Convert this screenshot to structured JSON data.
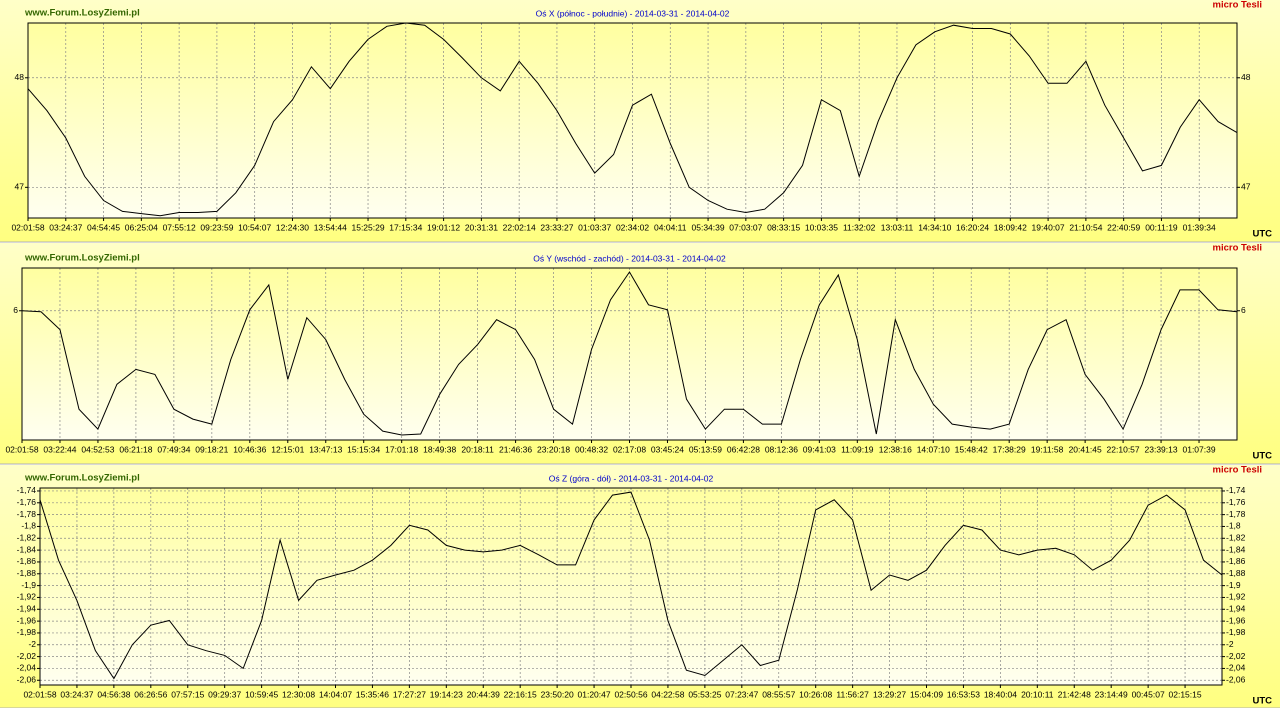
{
  "chart_data": [
    {
      "type": "line",
      "title": "Oś X (północ - południe) - 2014-03-31 - 2014-04-02",
      "watermark": "www.Forum.LosyZiemi.pl",
      "unit": "micro Tesli",
      "x_label": "UTC",
      "categories": [
        "02:01:58",
        null,
        "03:24:37",
        null,
        "04:54:45",
        null,
        "06:25:04",
        null,
        "07:55:12",
        null,
        "09:23:59",
        null,
        "10:54:07",
        null,
        "12:24:30",
        null,
        "13:54:44",
        null,
        "15:25:29",
        null,
        "17:15:34",
        null,
        "19:01:12",
        null,
        "20:31:31",
        null,
        "22:02:14",
        null,
        "23:33:27",
        null,
        "01:03:37",
        null,
        "02:34:02",
        null,
        "04:04:11",
        null,
        "05:34:39",
        null,
        "07:03:07",
        null,
        "08:33:15",
        null,
        "10:03:35",
        null,
        "11:32:02",
        null,
        "13:03:11",
        null,
        "14:34:10",
        null,
        "16:20:24",
        null,
        "18:09:42",
        null,
        "19:40:07",
        null,
        "21:10:54",
        null,
        "22:40:59",
        null,
        "00:11:19",
        null,
        "01:39:34",
        null,
        null
      ],
      "values": [
        47.9,
        47.7,
        47.45,
        47.1,
        46.88,
        46.78,
        46.76,
        46.74,
        46.77,
        46.77,
        46.78,
        46.95,
        47.2,
        47.6,
        47.8,
        48.1,
        47.9,
        48.15,
        48.35,
        48.47,
        48.5,
        48.48,
        48.35,
        48.18,
        48.0,
        47.88,
        48.15,
        47.95,
        47.7,
        47.4,
        47.13,
        47.3,
        47.75,
        47.85,
        47.4,
        47.0,
        46.88,
        46.8,
        46.77,
        46.8,
        46.95,
        47.2,
        47.8,
        47.7,
        47.1,
        47.6,
        48.0,
        48.3,
        48.42,
        48.48,
        48.45,
        48.45,
        48.4,
        48.2,
        47.95,
        47.95,
        48.15,
        47.75,
        47.45,
        47.15,
        47.2,
        47.55,
        47.8,
        47.6,
        47.5
      ],
      "color": "#000000",
      "ylim": [
        46.72,
        48.5
      ],
      "yticks": [
        47,
        48
      ],
      "grid": true
    },
    {
      "type": "line",
      "title": "Oś Y (wschód - zachód) - 2014-03-31 - 2014-04-02",
      "watermark": "www.Forum.LosyZiemi.pl",
      "unit": "micro Tesli",
      "x_label": "UTC",
      "categories": [
        "02:01:58",
        null,
        "03:22:44",
        null,
        "04:52:53",
        null,
        "06:21:18",
        null,
        "07:49:34",
        null,
        "09:18:21",
        null,
        "10:46:36",
        null,
        "12:15:01",
        null,
        "13:47:13",
        null,
        "15:15:34",
        null,
        "17:01:18",
        null,
        "18:49:38",
        null,
        "20:18:11",
        null,
        "21:46:36",
        null,
        "23:20:18",
        null,
        "00:48:32",
        null,
        "02:17:08",
        null,
        "03:45:24",
        null,
        "05:13:59",
        null,
        "06:42:28",
        null,
        "08:12:36",
        null,
        "09:41:03",
        null,
        "11:09:19",
        null,
        "12:38:16",
        null,
        "14:07:10",
        null,
        "15:48:42",
        null,
        "17:38:29",
        null,
        "19:11:58",
        null,
        "20:41:45",
        null,
        "22:10:57",
        null,
        "23:39:13",
        null,
        "01:07:39",
        null,
        null
      ],
      "values": [
        6.0,
        5.99,
        5.81,
        5.01,
        4.81,
        5.26,
        5.41,
        5.36,
        5.01,
        4.91,
        4.86,
        5.51,
        6.01,
        6.26,
        5.31,
        5.93,
        5.71,
        5.31,
        4.96,
        4.79,
        4.75,
        4.76,
        5.16,
        5.46,
        5.66,
        5.91,
        5.81,
        5.51,
        5.01,
        4.86,
        5.61,
        6.11,
        6.39,
        6.06,
        6.01,
        5.11,
        4.81,
        5.01,
        5.01,
        4.86,
        4.86,
        5.51,
        6.06,
        6.36,
        5.71,
        4.76,
        5.91,
        5.41,
        5.06,
        4.86,
        4.83,
        4.81,
        4.86,
        5.41,
        5.81,
        5.91,
        5.36,
        5.11,
        4.81,
        5.26,
        5.81,
        6.21,
        6.21,
        6.01,
        5.99
      ],
      "color": "#000000",
      "ylim": [
        4.7,
        6.43
      ],
      "yticks": [
        6
      ],
      "grid": true
    },
    {
      "type": "line",
      "title": "Oś Z (góra - dół) - 2014-03-31 - 2014-04-02",
      "watermark": "www.Forum.LosyZiemi.pl",
      "unit": "micro Tesli",
      "x_label": "UTC",
      "categories": [
        "02:01:58",
        null,
        "03:24:37",
        null,
        "04:56:38",
        null,
        "06:26:56",
        null,
        "07:57:15",
        null,
        "09:29:37",
        null,
        "10:59:45",
        null,
        "12:30:08",
        null,
        "14:04:07",
        null,
        "15:35:46",
        null,
        "17:27:27",
        null,
        "19:14:23",
        null,
        "20:44:39",
        null,
        "22:16:15",
        null,
        "23:50:20",
        null,
        "01:20:47",
        null,
        "02:50:56",
        null,
        "04:22:58",
        null,
        "05:53:25",
        null,
        "07:23:47",
        null,
        "08:55:57",
        null,
        "10:26:08",
        null,
        "11:56:27",
        null,
        "13:29:27",
        null,
        "15:04:09",
        null,
        "16:53:53",
        null,
        "18:40:04",
        null,
        "20:10:11",
        null,
        "21:42:48",
        null,
        "23:14:49",
        null,
        "00:45:07",
        null,
        "02:15:15",
        null,
        null
      ],
      "values": [
        -1.755,
        -1.857,
        -1.925,
        -2.01,
        -2.057,
        -2.0,
        -1.967,
        -1.959,
        -2.0,
        -2.01,
        -2.018,
        -2.04,
        -1.959,
        -1.823,
        -1.925,
        -1.891,
        -1.882,
        -1.874,
        -1.857,
        -1.832,
        -1.798,
        -1.806,
        -1.832,
        -1.84,
        -1.843,
        -1.84,
        -1.832,
        -1.848,
        -1.865,
        -1.865,
        -1.789,
        -1.747,
        -1.742,
        -1.823,
        -1.959,
        -2.043,
        -2.052,
        -2.026,
        -2.0,
        -2.035,
        -2.026,
        -1.908,
        -1.772,
        -1.755,
        -1.789,
        -1.908,
        -1.882,
        -1.891,
        -1.874,
        -1.832,
        -1.798,
        -1.806,
        -1.84,
        -1.848,
        -1.84,
        -1.837,
        -1.848,
        -1.874,
        -1.857,
        -1.823,
        -1.764,
        -1.747,
        -1.772,
        -1.857,
        -1.882
      ],
      "color": "#000000",
      "ylim": [
        -2.068,
        -1.735
      ],
      "yticks": [
        {
          "value": -1.74,
          "label": "-1,74"
        },
        {
          "value": -1.76,
          "label": "-1,76"
        },
        {
          "value": -1.78,
          "label": "-1,78"
        },
        {
          "value": -1.8,
          "label": "-1,8"
        },
        {
          "value": -1.82,
          "label": "-1,82"
        },
        {
          "value": -1.84,
          "label": "-1,84"
        },
        {
          "value": -1.86,
          "label": "-1,86"
        },
        {
          "value": -1.88,
          "label": "-1,88"
        },
        {
          "value": -1.9,
          "label": "-1,9"
        },
        {
          "value": -1.92,
          "label": "-1,92"
        },
        {
          "value": -1.94,
          "label": "-1,94"
        },
        {
          "value": -1.96,
          "label": "-1,96"
        },
        {
          "value": -1.98,
          "label": "-1,98"
        },
        -2,
        {
          "value": -2.02,
          "label": "-2,02"
        },
        {
          "value": -2.04,
          "label": "-2,04"
        },
        {
          "value": -2.06,
          "label": "-2,06"
        }
      ],
      "grid": true
    }
  ]
}
